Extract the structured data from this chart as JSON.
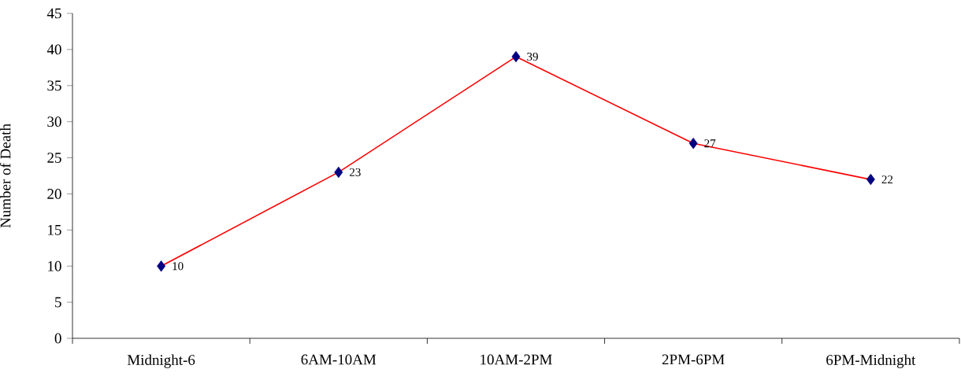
{
  "chart_data": {
    "type": "line",
    "ylabel": "Number of Death",
    "categories": [
      "Midnight-6",
      "6AM-10AM",
      "10AM-2PM",
      "2PM-6PM",
      "6PM-Midnight"
    ],
    "series": [
      {
        "color": "#ff0000",
        "colors": [
          "#000080",
          "#000080",
          "#000080",
          "#000080",
          "#000080"
        ],
        "values": [
          10,
          23,
          39,
          27,
          22
        ]
      }
    ],
    "marker": "diamond",
    "data_labels": true,
    "ylim": [
      0,
      45
    ],
    "yticks": [
      0,
      5,
      10,
      15,
      20,
      25,
      30,
      35,
      40,
      45
    ]
  }
}
